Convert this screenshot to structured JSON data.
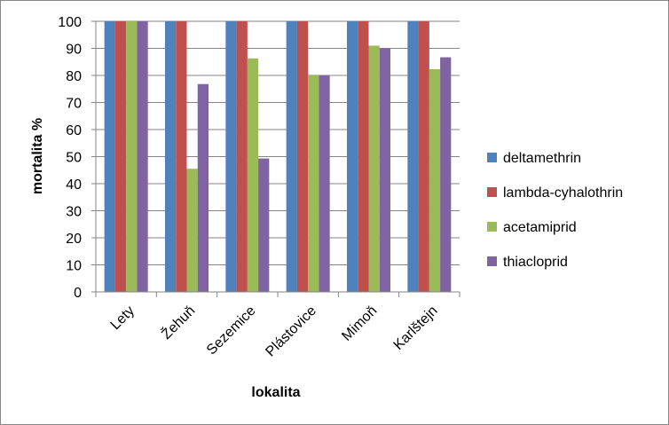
{
  "chart_data": {
    "type": "bar",
    "categories": [
      "Lety",
      "Žehuň",
      "Sezemice",
      "Plástovice",
      "Mimoň",
      "Karlštejn"
    ],
    "series": [
      {
        "name": "deltamethrin",
        "color": "#4F81BD",
        "values": [
          100,
          100,
          100,
          100,
          100,
          100
        ]
      },
      {
        "name": "lambda-cyhalothrin",
        "color": "#C0504D",
        "values": [
          100,
          100,
          100,
          100,
          100,
          100
        ]
      },
      {
        "name": "acetamiprid",
        "color": "#9BBB59",
        "values": [
          100,
          45.5,
          86.3,
          80,
          91,
          82.3
        ]
      },
      {
        "name": "thiacloprid",
        "color": "#8064A2",
        "values": [
          100,
          76.8,
          49.3,
          80,
          90,
          86.7
        ]
      }
    ],
    "xlabel": "lokalita",
    "ylabel": "mortalita %",
    "ylim": [
      0,
      100
    ],
    "yticks": [
      "0",
      "10",
      "20",
      "30",
      "40",
      "50",
      "60",
      "70",
      "80",
      "90",
      "100"
    ],
    "grid": true,
    "legend_position": "right"
  }
}
